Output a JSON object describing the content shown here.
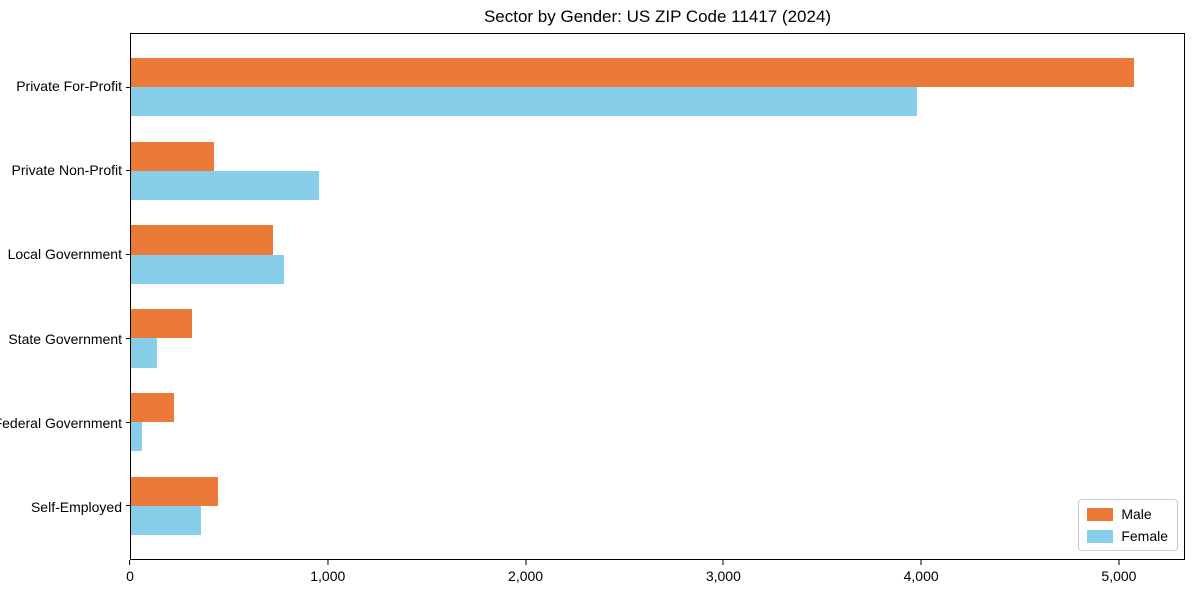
{
  "window": {
    "background": "#ffffff"
  },
  "chart_data": {
    "type": "bar",
    "orientation": "horizontal",
    "title": "Sector by Gender: US ZIP Code 11417 (2024)",
    "categories": [
      "Private For-Profit",
      "Private Non-Profit",
      "Local Government",
      "State Government",
      "Federal Government",
      "Self-Employed"
    ],
    "series": [
      {
        "name": "Male",
        "color": "#eb7a39",
        "values": [
          5080,
          420,
          720,
          310,
          220,
          440
        ]
      },
      {
        "name": "Female",
        "color": "#87ceeb",
        "values": [
          3980,
          950,
          775,
          130,
          55,
          355
        ]
      }
    ],
    "xlabel": "",
    "ylabel": "",
    "xlim": [
      0,
      5334
    ],
    "x_ticks": [
      {
        "value": 0,
        "label": "0"
      },
      {
        "value": 1000,
        "label": "1,000"
      },
      {
        "value": 2000,
        "label": "2,000"
      },
      {
        "value": 3000,
        "label": "3,000"
      },
      {
        "value": 4000,
        "label": "4,000"
      },
      {
        "value": 5000,
        "label": "5,000"
      }
    ],
    "grid": false,
    "legend": {
      "position": "lower right",
      "entries": [
        "Male",
        "Female"
      ]
    },
    "layout": {
      "bar_height_units": 0.35,
      "outer_pad_units": 0.635,
      "axis_color": "#000000"
    }
  }
}
